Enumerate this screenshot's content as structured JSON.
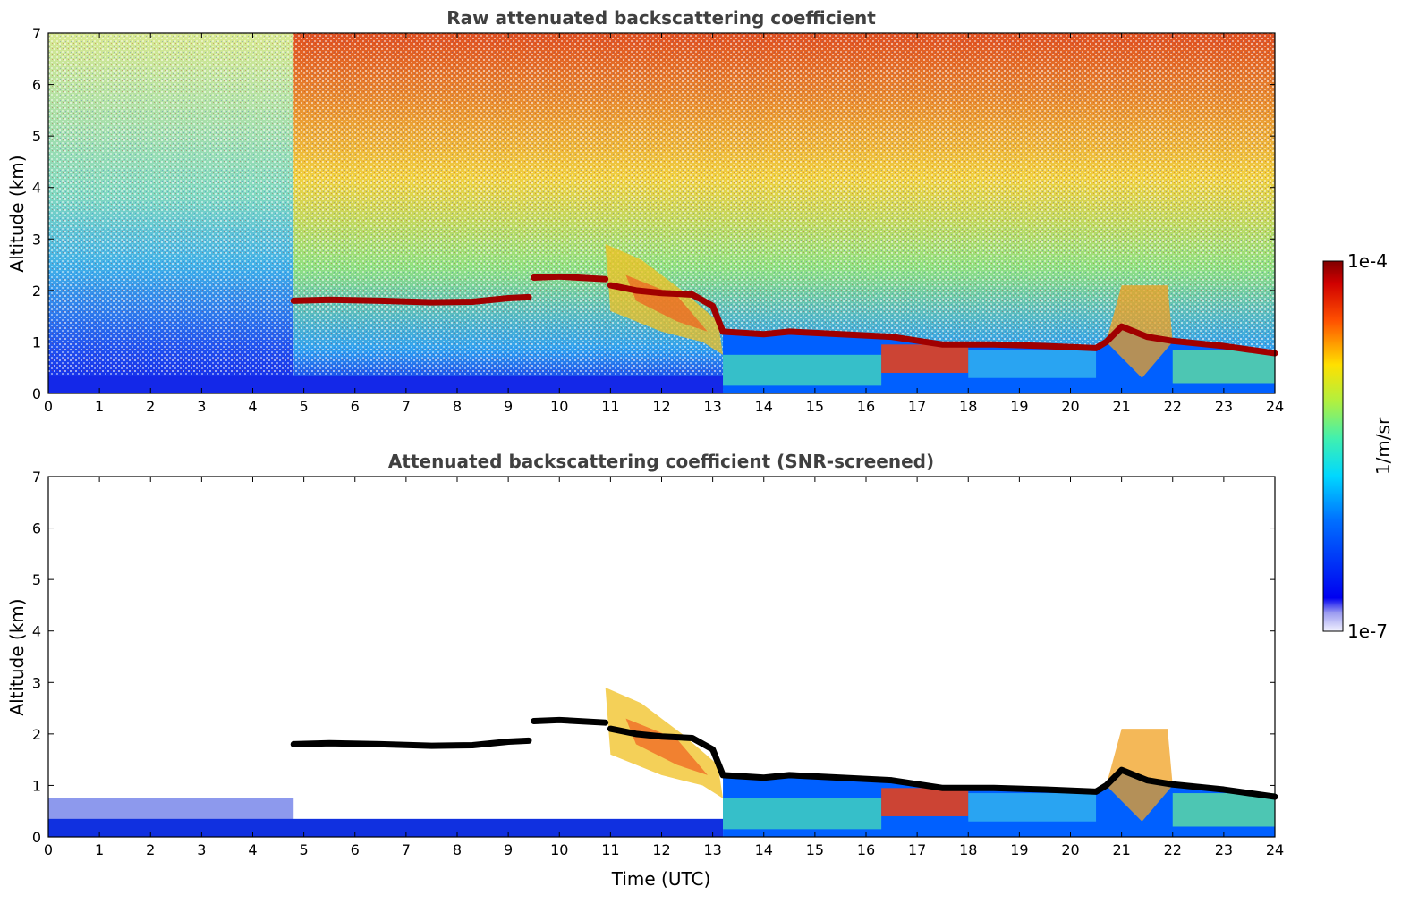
{
  "chart_data": [
    {
      "type": "heatmap",
      "title": "Raw attenuated backscattering coefficient",
      "xlabel": "",
      "ylabel": "Altitude (km)",
      "xlim": [
        0,
        24
      ],
      "ylim": [
        0,
        7
      ],
      "xticks": [
        "0",
        "1",
        "2",
        "3",
        "4",
        "5",
        "6",
        "7",
        "8",
        "9",
        "10",
        "11",
        "12",
        "13",
        "14",
        "15",
        "16",
        "17",
        "18",
        "19",
        "20",
        "21",
        "22",
        "23",
        "24"
      ],
      "yticks": [
        "0",
        "1",
        "2",
        "3",
        "4",
        "5",
        "6",
        "7"
      ],
      "screened": false
    },
    {
      "type": "heatmap",
      "title": "Attenuated backscattering coefficient (SNR-screened)",
      "xlabel": "Time (UTC)",
      "ylabel": "Altitude (km)",
      "xlim": [
        0,
        24
      ],
      "ylim": [
        0,
        7
      ],
      "xticks": [
        "0",
        "1",
        "2",
        "3",
        "4",
        "5",
        "6",
        "7",
        "8",
        "9",
        "10",
        "11",
        "12",
        "13",
        "14",
        "15",
        "16",
        "17",
        "18",
        "19",
        "20",
        "21",
        "22",
        "23",
        "24"
      ],
      "yticks": [
        "0",
        "1",
        "2",
        "3",
        "4",
        "5",
        "6",
        "7"
      ],
      "screened": true
    }
  ],
  "colorbar": {
    "label": "1/m/sr",
    "max_label": "1e-4",
    "min_label": "1e-7",
    "colormap": "jet",
    "scale": "log"
  },
  "cloud_layer": [
    [
      4.8,
      1.8
    ],
    [
      5.5,
      1.82
    ],
    [
      6.5,
      1.8
    ],
    [
      7.5,
      1.77
    ],
    [
      8.3,
      1.78
    ],
    [
      9.0,
      1.85
    ],
    [
      9.4,
      1.87
    ],
    [
      9.5,
      2.25
    ],
    [
      10.0,
      2.27
    ],
    [
      10.9,
      2.22
    ],
    [
      11.0,
      2.1
    ],
    [
      11.5,
      2.0
    ],
    [
      12.0,
      1.95
    ],
    [
      12.6,
      1.92
    ],
    [
      13.0,
      1.7
    ],
    [
      13.2,
      1.2
    ],
    [
      14.0,
      1.15
    ],
    [
      14.5,
      1.2
    ],
    [
      15.5,
      1.15
    ],
    [
      16.5,
      1.1
    ],
    [
      17.5,
      0.95
    ],
    [
      18.5,
      0.95
    ],
    [
      19.5,
      0.92
    ],
    [
      20.5,
      0.88
    ],
    [
      20.7,
      1.0
    ],
    [
      21.0,
      1.3
    ],
    [
      21.5,
      1.1
    ],
    [
      22.0,
      1.02
    ],
    [
      23.0,
      0.92
    ],
    [
      24.0,
      0.78
    ]
  ]
}
